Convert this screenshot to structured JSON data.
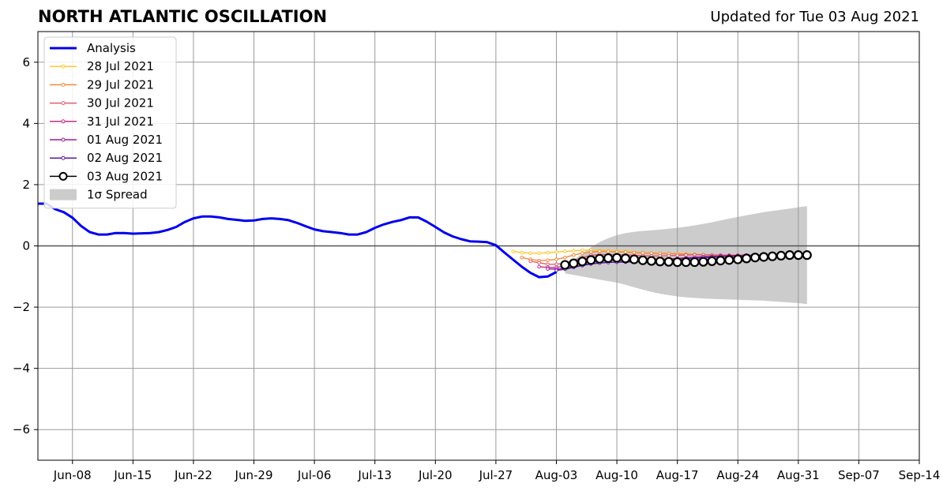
{
  "header": {
    "title": "NORTH ATLANTIC OSCILLATION",
    "updated": "Updated for Tue 03 Aug 2021"
  },
  "chart_data": {
    "type": "line",
    "title": "NORTH ATLANTIC OSCILLATION",
    "xlabel": "",
    "ylabel": "",
    "ylim": [
      -7,
      7
    ],
    "yticks": [
      6,
      4,
      2,
      0,
      -2,
      -4,
      -6
    ],
    "ytick_labels": [
      "6",
      "4",
      "2",
      "0",
      "−2",
      "−4",
      "−6"
    ],
    "xlim": [
      "2021-06-04",
      "2021-09-14"
    ],
    "xticks": [
      "2021-06-08",
      "2021-06-15",
      "2021-06-22",
      "2021-06-29",
      "2021-07-06",
      "2021-07-13",
      "2021-07-20",
      "2021-07-27",
      "2021-08-03",
      "2021-08-10",
      "2021-08-17",
      "2021-08-24",
      "2021-08-31",
      "2021-09-07",
      "2021-09-14"
    ],
    "xtick_labels": [
      "Jun-08",
      "Jun-15",
      "Jun-22",
      "Jun-29",
      "Jul-06",
      "Jul-13",
      "Jul-20",
      "Jul-27",
      "Aug-03",
      "Aug-10",
      "Aug-17",
      "Aug-24",
      "Aug-31",
      "Sep-07",
      "Sep-14"
    ],
    "grid": true,
    "legend_position": "top-left",
    "analysis": {
      "name": "Analysis",
      "color": "#0000ee",
      "x": [
        "2021-06-04",
        "2021-06-05",
        "2021-06-06",
        "2021-06-07",
        "2021-06-08",
        "2021-06-09",
        "2021-06-10",
        "2021-06-11",
        "2021-06-12",
        "2021-06-13",
        "2021-06-14",
        "2021-06-15",
        "2021-06-16",
        "2021-06-17",
        "2021-06-18",
        "2021-06-19",
        "2021-06-20",
        "2021-06-21",
        "2021-06-22",
        "2021-06-23",
        "2021-06-24",
        "2021-06-25",
        "2021-06-26",
        "2021-06-27",
        "2021-06-28",
        "2021-06-29",
        "2021-06-30",
        "2021-07-01",
        "2021-07-02",
        "2021-07-03",
        "2021-07-04",
        "2021-07-05",
        "2021-07-06",
        "2021-07-07",
        "2021-07-08",
        "2021-07-09",
        "2021-07-10",
        "2021-07-11",
        "2021-07-12",
        "2021-07-13",
        "2021-07-14",
        "2021-07-15",
        "2021-07-16",
        "2021-07-17",
        "2021-07-18",
        "2021-07-19",
        "2021-07-20",
        "2021-07-21",
        "2021-07-22",
        "2021-07-23",
        "2021-07-24",
        "2021-07-25",
        "2021-07-26",
        "2021-07-27",
        "2021-07-28",
        "2021-07-29",
        "2021-07-30",
        "2021-07-31",
        "2021-08-01",
        "2021-08-02",
        "2021-08-03"
      ],
      "y": [
        1.38,
        1.38,
        1.2,
        1.1,
        0.92,
        0.65,
        0.45,
        0.37,
        0.37,
        0.42,
        0.42,
        0.4,
        0.41,
        0.42,
        0.45,
        0.52,
        0.62,
        0.78,
        0.9,
        0.96,
        0.96,
        0.93,
        0.88,
        0.85,
        0.82,
        0.83,
        0.88,
        0.9,
        0.88,
        0.84,
        0.75,
        0.64,
        0.54,
        0.48,
        0.45,
        0.42,
        0.37,
        0.37,
        0.45,
        0.59,
        0.7,
        0.78,
        0.84,
        0.93,
        0.93,
        0.79,
        0.62,
        0.44,
        0.31,
        0.22,
        0.15,
        0.14,
        0.12,
        0.02,
        -0.22,
        -0.45,
        -0.68,
        -0.88,
        -1.02,
        -1.0,
        -0.85
      ]
    },
    "forecasts": [
      {
        "name": "28 Jul 2021",
        "color": "#ffc830",
        "start": "2021-07-29",
        "values": [
          -0.18,
          -0.22,
          -0.24,
          -0.24,
          -0.22,
          -0.2,
          -0.18,
          -0.16,
          -0.14,
          -0.14,
          -0.15,
          -0.16,
          -0.17,
          -0.18,
          -0.2,
          -0.22,
          -0.23,
          -0.24,
          -0.25,
          -0.25,
          -0.26,
          -0.27,
          -0.28,
          -0.29,
          -0.3,
          -0.3,
          -0.3,
          -0.3,
          -0.3
        ]
      },
      {
        "name": "29 Jul 2021",
        "color": "#f28a3c",
        "start": "2021-07-30",
        "values": [
          -0.38,
          -0.44,
          -0.48,
          -0.47,
          -0.44,
          -0.38,
          -0.3,
          -0.24,
          -0.2,
          -0.18,
          -0.18,
          -0.19,
          -0.2,
          -0.22,
          -0.23,
          -0.24,
          -0.25,
          -0.25,
          -0.26,
          -0.27,
          -0.28,
          -0.29,
          -0.3,
          -0.3,
          -0.3,
          -0.3,
          -0.3,
          -0.31,
          -0.31
        ]
      },
      {
        "name": "30 Jul 2021",
        "color": "#e35b6e",
        "start": "2021-07-31",
        "values": [
          -0.5,
          -0.55,
          -0.6,
          -0.6,
          -0.56,
          -0.48,
          -0.38,
          -0.31,
          -0.28,
          -0.28,
          -0.29,
          -0.3,
          -0.31,
          -0.32,
          -0.33,
          -0.33,
          -0.32,
          -0.31,
          -0.3,
          -0.29,
          -0.29,
          -0.3,
          -0.3,
          -0.31,
          -0.31,
          -0.31,
          -0.31,
          -0.31,
          -0.31
        ]
      },
      {
        "name": "31 Jul 2021",
        "color": "#c42e86",
        "start": "2021-08-01",
        "values": [
          -0.68,
          -0.7,
          -0.7,
          -0.66,
          -0.6,
          -0.52,
          -0.44,
          -0.38,
          -0.36,
          -0.37,
          -0.39,
          -0.41,
          -0.42,
          -0.43,
          -0.44,
          -0.44,
          -0.43,
          -0.41,
          -0.39,
          -0.37,
          -0.35,
          -0.33,
          -0.32,
          -0.31,
          -0.31,
          -0.31,
          -0.31,
          -0.31,
          -0.31
        ]
      },
      {
        "name": "01 Aug 2021",
        "color": "#9a1a9a",
        "start": "2021-08-02",
        "values": [
          -0.75,
          -0.76,
          -0.73,
          -0.68,
          -0.63,
          -0.58,
          -0.55,
          -0.53,
          -0.53,
          -0.53,
          -0.52,
          -0.5,
          -0.47,
          -0.45,
          -0.43,
          -0.41,
          -0.39,
          -0.37,
          -0.35,
          -0.34,
          -0.33,
          -0.32,
          -0.32,
          -0.31,
          -0.31,
          -0.31,
          -0.31,
          -0.31
        ]
      },
      {
        "name": "02 Aug 2021",
        "color": "#5b1aa8",
        "start": "2021-08-03",
        "values": [
          -0.8,
          -0.76,
          -0.7,
          -0.64,
          -0.59,
          -0.56,
          -0.54,
          -0.53,
          -0.52,
          -0.51,
          -0.5,
          -0.49,
          -0.48,
          -0.46,
          -0.44,
          -0.42,
          -0.41,
          -0.39,
          -0.37,
          -0.35,
          -0.34,
          -0.33,
          -0.32,
          -0.31,
          -0.31,
          -0.31,
          -0.31
        ]
      },
      {
        "name": "03 Aug 2021",
        "color": "#000000",
        "start": "2021-08-04",
        "values": [
          -0.62,
          -0.57,
          -0.51,
          -0.46,
          -0.42,
          -0.4,
          -0.39,
          -0.41,
          -0.44,
          -0.47,
          -0.49,
          -0.51,
          -0.52,
          -0.53,
          -0.53,
          -0.53,
          -0.52,
          -0.5,
          -0.48,
          -0.46,
          -0.44,
          -0.41,
          -0.38,
          -0.36,
          -0.34,
          -0.32,
          -0.3,
          -0.3,
          -0.3
        ]
      }
    ],
    "spread": {
      "name": "1σ Spread",
      "color": "#cccccc",
      "start": "2021-08-04",
      "upper": [
        -0.6,
        -0.45,
        -0.25,
        -0.05,
        0.12,
        0.25,
        0.35,
        0.42,
        0.46,
        0.49,
        0.51,
        0.53,
        0.56,
        0.59,
        0.63,
        0.67,
        0.72,
        0.77,
        0.83,
        0.89,
        0.95,
        1.0,
        1.05,
        1.1,
        1.14,
        1.18,
        1.22,
        1.26,
        1.3
      ],
      "lower": [
        -0.9,
        -0.95,
        -1.0,
        -1.05,
        -1.1,
        -1.15,
        -1.2,
        -1.27,
        -1.35,
        -1.43,
        -1.5,
        -1.56,
        -1.61,
        -1.65,
        -1.68,
        -1.7,
        -1.72,
        -1.73,
        -1.74,
        -1.75,
        -1.76,
        -1.77,
        -1.78,
        -1.79,
        -1.81,
        -1.83,
        -1.85,
        -1.87,
        -1.9
      ]
    }
  }
}
